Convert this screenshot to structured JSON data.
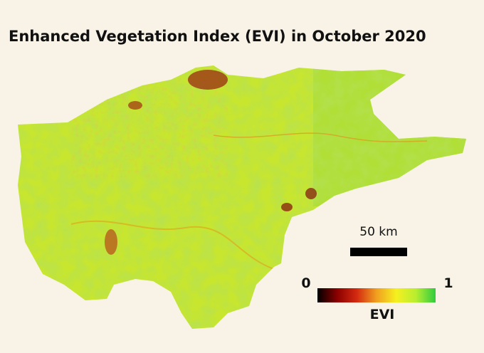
{
  "title": "Enhanced Vegetation Index (EVI) in October 2020",
  "scale_bar": {
    "label": "50 km"
  },
  "legend": {
    "min": 0,
    "max": 1,
    "label": "EVI",
    "colors": [
      "#000000",
      "#8b0000",
      "#d42a10",
      "#f0a020",
      "#f5f020",
      "#b8ee30",
      "#2ecc40"
    ]
  }
}
